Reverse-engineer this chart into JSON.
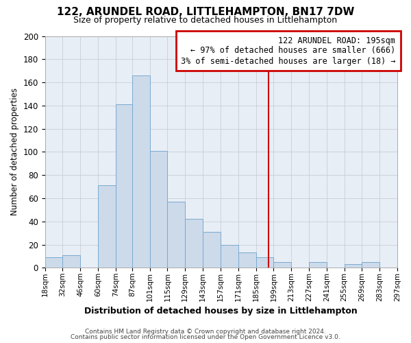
{
  "title": "122, ARUNDEL ROAD, LITTLEHAMPTON, BN17 7DW",
  "subtitle": "Size of property relative to detached houses in Littlehampton",
  "xlabel": "Distribution of detached houses by size in Littlehampton",
  "ylabel": "Number of detached properties",
  "footnote1": "Contains HM Land Registry data © Crown copyright and database right 2024.",
  "footnote2": "Contains public sector information licensed under the Open Government Licence v3.0.",
  "bar_color": "#ccdaea",
  "bar_edge_color": "#7aaad0",
  "grid_color": "#c8cdd6",
  "background_color": "#e8eef6",
  "vline_color": "#cc0000",
  "annotation_box_edge": "#cc0000",
  "bins": [
    18,
    32,
    46,
    60,
    74,
    87,
    101,
    115,
    129,
    143,
    157,
    171,
    185,
    199,
    213,
    227,
    241,
    255,
    269,
    283,
    297
  ],
  "counts": [
    9,
    11,
    0,
    71,
    141,
    166,
    101,
    57,
    42,
    31,
    20,
    13,
    9,
    5,
    0,
    5,
    0,
    3,
    5,
    0
  ],
  "tick_labels": [
    "18sqm",
    "32sqm",
    "46sqm",
    "60sqm",
    "74sqm",
    "87sqm",
    "101sqm",
    "115sqm",
    "129sqm",
    "143sqm",
    "157sqm",
    "171sqm",
    "185sqm",
    "199sqm",
    "213sqm",
    "227sqm",
    "241sqm",
    "255sqm",
    "269sqm",
    "283sqm",
    "297sqm"
  ],
  "vline_x": 195,
  "ylim": [
    0,
    200
  ],
  "yticks": [
    0,
    20,
    40,
    60,
    80,
    100,
    120,
    140,
    160,
    180,
    200
  ],
  "annotation_title": "122 ARUNDEL ROAD: 195sqm",
  "annotation_line1": "← 97% of detached houses are smaller (666)",
  "annotation_line2": "3% of semi-detached houses are larger (18) →"
}
